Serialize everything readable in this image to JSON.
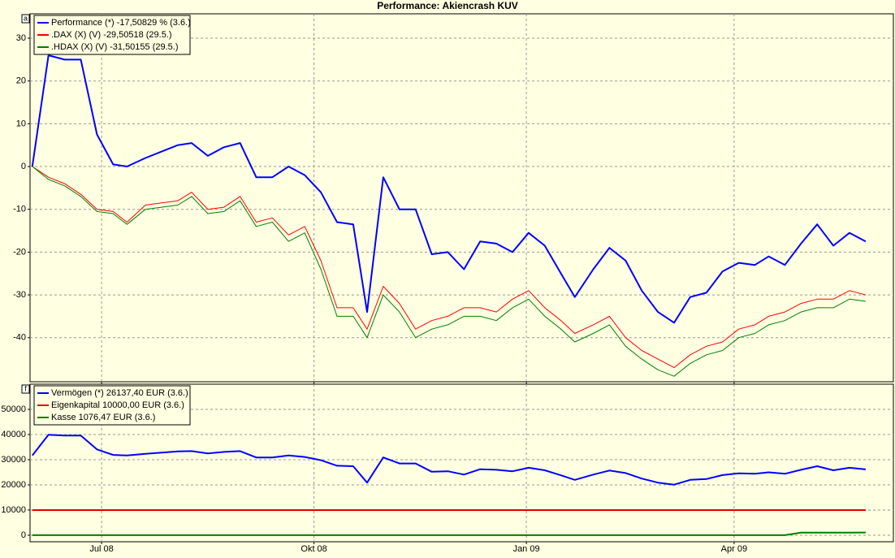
{
  "chart_data": [
    {
      "type": "line",
      "title": "Performance: Akiencrash KUV",
      "panel_label": "a",
      "x": [
        -30,
        -23,
        -16,
        -9,
        -2,
        5,
        11,
        19,
        26,
        33,
        39,
        46,
        53,
        60,
        67,
        74,
        81,
        88,
        95,
        102,
        109,
        115,
        122,
        129,
        136,
        143,
        150,
        157,
        164,
        171,
        178,
        185,
        192,
        199,
        205,
        213,
        220,
        227,
        234,
        241,
        248,
        255,
        262,
        269,
        276,
        283,
        289,
        296,
        303,
        310,
        317,
        324,
        331
      ],
      "series": [
        {
          "name": "Performance (*) -17,50829 % (3.6.)",
          "color": "#0000ff",
          "width": 2,
          "values": [
            0,
            26,
            25,
            25,
            7.5,
            0.5,
            0,
            2,
            3.5,
            5,
            5.5,
            2.5,
            4.5,
            5.5,
            -2.5,
            -2.5,
            0,
            -2,
            -6,
            -13,
            -13.5,
            -34,
            -2.5,
            -10,
            -10,
            -20.5,
            -20,
            -24,
            -17.5,
            -18,
            -20,
            -15.5,
            -18.5,
            -25,
            -30.5,
            -24,
            -19,
            -22,
            -29,
            -34,
            -36.5,
            -30.5,
            -29.5,
            -24.5,
            -22.5,
            -23,
            -21,
            -23,
            -18,
            -13.5,
            -18.5,
            -15.5,
            -17.5
          ]
        },
        {
          "name": ".DAX (X) (V) -29,50518 (29.5.)",
          "color": "#ff0000",
          "width": 1,
          "values": [
            0,
            -2.5,
            -4,
            -6.5,
            -10,
            -10.5,
            -13,
            -9,
            -8.5,
            -8,
            -6,
            -10,
            -9.5,
            -7,
            -13,
            -12,
            -16,
            -14,
            -22,
            -33,
            -33,
            -38,
            -28,
            -32,
            -38,
            -36,
            -35,
            -33,
            -33,
            -34,
            -31,
            -29,
            -33,
            -36,
            -39,
            -37,
            -35,
            -40,
            -43,
            -45,
            -47,
            -44,
            -42,
            -41,
            -38,
            -37,
            -35,
            -34,
            -32,
            -31,
            -31,
            -29,
            -30
          ]
        },
        {
          "name": ".HDAX (X) (V) -31,50155 (29.5.)",
          "color": "#008000",
          "width": 1,
          "values": [
            0,
            -3,
            -4.5,
            -7,
            -10.5,
            -11,
            -13.5,
            -10,
            -9.5,
            -9,
            -7,
            -11,
            -10.5,
            -8,
            -14,
            -13,
            -17.5,
            -15.5,
            -24,
            -35,
            -35,
            -40,
            -30,
            -34,
            -40,
            -38,
            -37,
            -35,
            -35,
            -36,
            -33,
            -31,
            -35,
            -38,
            -41,
            -39,
            -37,
            -42,
            -45,
            -47.5,
            -49,
            -46,
            -44,
            -43,
            -40,
            -39,
            -37,
            -36,
            -34,
            -33,
            -33,
            -31,
            -31.5
          ]
        }
      ],
      "xlim": [
        -31,
        343
      ],
      "xticks": [
        {
          "value": 0,
          "label": "Jul 08"
        },
        {
          "value": 92,
          "label": "Okt 08"
        },
        {
          "value": 184,
          "label": "Jan 09"
        },
        {
          "value": 274,
          "label": "Apr 09"
        }
      ],
      "ylim": [
        -50.3,
        35.7
      ],
      "yticks": [
        30,
        20,
        10,
        0,
        -10,
        -20,
        -30,
        -40
      ],
      "grid": true
    },
    {
      "type": "line",
      "panel_label": "f",
      "x": [
        -30,
        -23,
        -16,
        -9,
        -2,
        5,
        11,
        19,
        26,
        33,
        39,
        46,
        53,
        60,
        67,
        74,
        81,
        88,
        95,
        102,
        109,
        115,
        122,
        129,
        136,
        143,
        150,
        157,
        164,
        171,
        178,
        185,
        192,
        199,
        205,
        213,
        220,
        227,
        234,
        241,
        248,
        255,
        262,
        269,
        276,
        283,
        289,
        296,
        303,
        310,
        317,
        324,
        331
      ],
      "series": [
        {
          "name": "Vermögen (*) 26137,40 EUR (3.6.)",
          "color": "#0000ff",
          "width": 2,
          "values": [
            31700,
            39900,
            39600,
            39600,
            34100,
            31900,
            31700,
            32300,
            32800,
            33300,
            33400,
            32500,
            33100,
            33400,
            30900,
            30900,
            31700,
            31100,
            29800,
            27600,
            27400,
            20900,
            30900,
            28500,
            28500,
            25200,
            25400,
            24100,
            26200,
            26000,
            25400,
            26800,
            25800,
            23800,
            22000,
            24100,
            25700,
            24700,
            22500,
            20900,
            20100,
            22000,
            22300,
            23900,
            24600,
            24400,
            25000,
            24400,
            26000,
            27400,
            25800,
            26800,
            26137.4
          ]
        },
        {
          "name": "Eigenkapital 10000,00 EUR (3.6.)",
          "color": "#e00000",
          "width": 2,
          "values": [
            10000,
            10000,
            10000,
            10000,
            10000,
            10000,
            10000,
            10000,
            10000,
            10000,
            10000,
            10000,
            10000,
            10000,
            10000,
            10000,
            10000,
            10000,
            10000,
            10000,
            10000,
            10000,
            10000,
            10000,
            10000,
            10000,
            10000,
            10000,
            10000,
            10000,
            10000,
            10000,
            10000,
            10000,
            10000,
            10000,
            10000,
            10000,
            10000,
            10000,
            10000,
            10000,
            10000,
            10000,
            10000,
            10000,
            10000,
            10000,
            10000,
            10000,
            10000,
            10000,
            10000
          ]
        },
        {
          "name": "Kasse 1076,47 EUR (3.6.)",
          "color": "#008000",
          "width": 2,
          "values": [
            0,
            0,
            0,
            0,
            0,
            0,
            0,
            0,
            0,
            0,
            0,
            0,
            0,
            0,
            0,
            0,
            0,
            0,
            0,
            0,
            0,
            0,
            0,
            0,
            0,
            0,
            0,
            0,
            0,
            0,
            0,
            0,
            0,
            0,
            0,
            0,
            0,
            0,
            0,
            0,
            0,
            0,
            0,
            0,
            0,
            0,
            0,
            0,
            1000,
            1000,
            1000,
            1050,
            1076.47
          ]
        }
      ],
      "xlim": [
        -31,
        343
      ],
      "xticks": [
        {
          "value": 0,
          "label": "Jul 08"
        },
        {
          "value": 92,
          "label": "Okt 08"
        },
        {
          "value": 184,
          "label": "Jan 09"
        },
        {
          "value": 274,
          "label": "Apr 09"
        }
      ],
      "ylim": [
        -2600,
        60000
      ],
      "yticks": [
        0,
        10000,
        20000,
        30000,
        40000,
        50000
      ],
      "grid": true
    }
  ]
}
